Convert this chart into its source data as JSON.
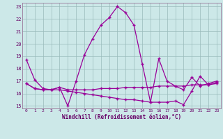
{
  "xlabel": "Windchill (Refroidissement éolien,°C)",
  "x_values": [
    0,
    1,
    2,
    3,
    4,
    5,
    6,
    7,
    8,
    9,
    10,
    11,
    12,
    13,
    14,
    15,
    16,
    17,
    18,
    19,
    20,
    21,
    22,
    23
  ],
  "line1": [
    18.7,
    17.1,
    16.4,
    16.3,
    16.5,
    15.0,
    17.0,
    19.1,
    20.4,
    21.5,
    22.1,
    23.0,
    22.5,
    21.5,
    18.4,
    15.3,
    18.8,
    17.0,
    16.6,
    16.3,
    17.3,
    16.6,
    16.8,
    17.0
  ],
  "line2": [
    16.8,
    16.4,
    16.3,
    16.3,
    16.5,
    16.3,
    16.3,
    16.3,
    16.3,
    16.4,
    16.4,
    16.4,
    16.5,
    16.5,
    16.5,
    16.5,
    16.6,
    16.6,
    16.6,
    16.6,
    16.7,
    16.7,
    16.7,
    16.8
  ],
  "line3": [
    16.8,
    16.4,
    16.3,
    16.3,
    16.3,
    16.2,
    16.1,
    16.0,
    15.9,
    15.8,
    15.7,
    15.6,
    15.5,
    15.5,
    15.4,
    15.3,
    15.3,
    15.3,
    15.4,
    15.1,
    16.2,
    17.4,
    16.7,
    16.9
  ],
  "line_color": "#990099",
  "bg_color": "#cce8e8",
  "grid_color": "#99bbbb",
  "ylim": [
    14.8,
    23.3
  ],
  "yticks": [
    15,
    16,
    17,
    18,
    19,
    20,
    21,
    22,
    23
  ],
  "tick_color": "#660066",
  "label_color": "#660066"
}
